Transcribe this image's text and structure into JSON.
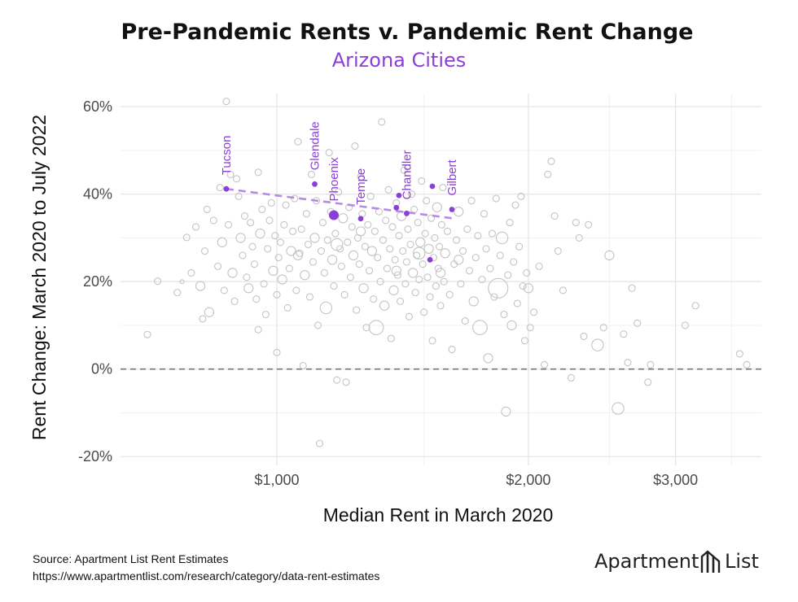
{
  "colors": {
    "accent": "#8b3fd9",
    "grey_point": "#c4c4c4",
    "grid": "#e6e6e6",
    "zero_line": "#777777"
  },
  "footer": {
    "source": "Source: Apartment List Rent Estimates",
    "url": "https://www.apartmentlist.com/research/category/data-rent-estimates"
  },
  "brand": {
    "name": "Apartment",
    "suffix": "List",
    "icon": "apartment-list-logo-icon"
  },
  "chart_data": {
    "type": "scatter",
    "title": "Pre-Pandemic Rents v. Pandemic Rent Change",
    "subtitle": "Arizona Cities",
    "xlabel": "Median Rent in March 2020",
    "ylabel": "Rent Change: March 2020 to July 2022",
    "x_scale": "log",
    "xlim": [
      650,
      3800
    ],
    "ylim": [
      -22,
      63
    ],
    "x_ticks": [
      {
        "value": 1000,
        "label": "$1,000"
      },
      {
        "value": 2000,
        "label": "$2,000"
      },
      {
        "value": 3000,
        "label": "$3,000"
      }
    ],
    "x_minor_ticks": [
      1500,
      2500,
      3500
    ],
    "y_ticks": [
      {
        "value": -20,
        "label": "-20%"
      },
      {
        "value": 0,
        "label": "0%"
      },
      {
        "value": 20,
        "label": "20%"
      },
      {
        "value": 40,
        "label": "40%"
      },
      {
        "value": 60,
        "label": "60%"
      }
    ],
    "y_minor_ticks": [
      -10,
      10,
      30,
      50
    ],
    "reference_line": {
      "y": 0,
      "style": "dashed"
    },
    "trend_line": {
      "x": [
        870,
        1620
      ],
      "y": [
        41.2,
        34.5
      ],
      "style": "dashed"
    },
    "highlighted": [
      {
        "name": "Tucson",
        "x": 870,
        "y": 41.2
      },
      {
        "name": "Glendale",
        "x": 1110,
        "y": 42.3
      },
      {
        "name": "Phoenix",
        "x": 1170,
        "y": 35.2
      },
      {
        "name": "Tempe",
        "x": 1260,
        "y": 34.4
      },
      {
        "name": "Chandler",
        "x": 1430,
        "y": 35.6
      },
      {
        "name": "Gilbert",
        "x": 1620,
        "y": 36.5
      },
      {
        "name": "",
        "x": 1390,
        "y": 36.9
      },
      {
        "name": "",
        "x": 1400,
        "y": 39.7
      },
      {
        "name": "",
        "x": 1535,
        "y": 41.8
      },
      {
        "name": "",
        "x": 1525,
        "y": 25.0
      }
    ],
    "points": [
      [
        700,
        7.9,
        2
      ],
      [
        720,
        20.1,
        2
      ],
      [
        760,
        17.5,
        2
      ],
      [
        770,
        20.0,
        1
      ],
      [
        780,
        30.1,
        2
      ],
      [
        790,
        22.0,
        2
      ],
      [
        800,
        32.5,
        2
      ],
      [
        810,
        19.0,
        3
      ],
      [
        815,
        11.5,
        2
      ],
      [
        820,
        27.0,
        2
      ],
      [
        825,
        36.5,
        2
      ],
      [
        830,
        13.0,
        3
      ],
      [
        840,
        34.0,
        2
      ],
      [
        850,
        23.5,
        2
      ],
      [
        855,
        41.5,
        2
      ],
      [
        860,
        29.0,
        3
      ],
      [
        865,
        18.0,
        2
      ],
      [
        870,
        61.2,
        2
      ],
      [
        875,
        33.0,
        2
      ],
      [
        880,
        44.5,
        2
      ],
      [
        885,
        22.0,
        3
      ],
      [
        890,
        15.5,
        2
      ],
      [
        895,
        43.5,
        2
      ],
      [
        900,
        39.5,
        2
      ],
      [
        905,
        30.0,
        3
      ],
      [
        910,
        26.0,
        2
      ],
      [
        915,
        35.0,
        2
      ],
      [
        920,
        21.0,
        2
      ],
      [
        925,
        18.5,
        3
      ],
      [
        930,
        33.5,
        2
      ],
      [
        935,
        28.0,
        2
      ],
      [
        940,
        24.0,
        2
      ],
      [
        945,
        16.0,
        2
      ],
      [
        950,
        45.0,
        2
      ],
      [
        955,
        31.0,
        3
      ],
      [
        960,
        36.5,
        2
      ],
      [
        965,
        19.5,
        2
      ],
      [
        970,
        12.5,
        2
      ],
      [
        975,
        27.5,
        2
      ],
      [
        980,
        34.0,
        2
      ],
      [
        985,
        38.0,
        2
      ],
      [
        990,
        22.5,
        3
      ],
      [
        995,
        30.5,
        2
      ],
      [
        1000,
        3.8,
        2
      ],
      [
        1005,
        25.5,
        2
      ],
      [
        1010,
        29.0,
        2
      ],
      [
        1015,
        20.5,
        3
      ],
      [
        1020,
        33.0,
        2
      ],
      [
        1025,
        37.5,
        2
      ],
      [
        1030,
        14.0,
        2
      ],
      [
        1035,
        23.0,
        2
      ],
      [
        1040,
        27.0,
        3
      ],
      [
        1045,
        31.5,
        2
      ],
      [
        1050,
        39.0,
        2
      ],
      [
        1055,
        18.0,
        2
      ],
      [
        1060,
        52.0,
        2
      ],
      [
        1065,
        26.5,
        2
      ],
      [
        1070,
        32.0,
        2
      ],
      [
        1075,
        0.8,
        2
      ],
      [
        1080,
        21.5,
        3
      ],
      [
        1085,
        35.5,
        2
      ],
      [
        1090,
        28.5,
        2
      ],
      [
        1095,
        16.5,
        2
      ],
      [
        1100,
        44.5,
        2
      ],
      [
        1105,
        24.5,
        2
      ],
      [
        1110,
        30.0,
        3
      ],
      [
        1115,
        38.5,
        2
      ],
      [
        1120,
        10.0,
        2
      ],
      [
        1125,
        -17.0,
        2
      ],
      [
        1130,
        27.0,
        2
      ],
      [
        1135,
        33.5,
        2
      ],
      [
        1140,
        22.0,
        2
      ],
      [
        1145,
        14.0,
        4
      ],
      [
        1150,
        29.5,
        2
      ],
      [
        1155,
        49.5,
        2
      ],
      [
        1160,
        36.0,
        2
      ],
      [
        1165,
        25.0,
        3
      ],
      [
        1170,
        19.0,
        2
      ],
      [
        1175,
        31.0,
        2
      ],
      [
        1180,
        -2.5,
        2
      ],
      [
        1185,
        40.5,
        2
      ],
      [
        1190,
        27.5,
        2
      ],
      [
        1195,
        23.5,
        2
      ],
      [
        1200,
        34.5,
        3
      ],
      [
        1205,
        17.0,
        2
      ],
      [
        1210,
        -3.0,
        2
      ],
      [
        1215,
        29.0,
        2
      ],
      [
        1220,
        37.0,
        2
      ],
      [
        1225,
        21.0,
        2
      ],
      [
        1230,
        32.5,
        2
      ],
      [
        1235,
        26.0,
        3
      ],
      [
        1240,
        51.0,
        2
      ],
      [
        1245,
        13.5,
        2
      ],
      [
        1250,
        30.0,
        2
      ],
      [
        1255,
        24.0,
        2
      ],
      [
        1260,
        44.0,
        2
      ],
      [
        1265,
        35.5,
        2
      ],
      [
        1270,
        18.5,
        3
      ],
      [
        1275,
        28.0,
        2
      ],
      [
        1280,
        9.5,
        2
      ],
      [
        1285,
        33.0,
        2
      ],
      [
        1290,
        22.5,
        2
      ],
      [
        1295,
        39.5,
        2
      ],
      [
        1300,
        27.0,
        3
      ],
      [
        1305,
        16.0,
        2
      ],
      [
        1310,
        31.5,
        2
      ],
      [
        1315,
        9.5,
        5
      ],
      [
        1320,
        25.5,
        2
      ],
      [
        1325,
        36.0,
        2
      ],
      [
        1330,
        20.0,
        2
      ],
      [
        1335,
        56.5,
        2
      ],
      [
        1340,
        29.5,
        2
      ],
      [
        1345,
        14.5,
        3
      ],
      [
        1350,
        34.0,
        2
      ],
      [
        1355,
        23.0,
        2
      ],
      [
        1360,
        41.0,
        2
      ],
      [
        1365,
        27.5,
        2
      ],
      [
        1370,
        7.0,
        2
      ],
      [
        1375,
        32.5,
        2
      ],
      [
        1380,
        18.0,
        3
      ],
      [
        1385,
        25.0,
        2
      ],
      [
        1390,
        38.0,
        2
      ],
      [
        1395,
        21.5,
        2
      ],
      [
        1400,
        30.5,
        2
      ],
      [
        1405,
        15.5,
        2
      ],
      [
        1410,
        35.0,
        3
      ],
      [
        1415,
        27.0,
        2
      ],
      [
        1420,
        45.5,
        2
      ],
      [
        1425,
        19.5,
        2
      ],
      [
        1430,
        24.5,
        2
      ],
      [
        1435,
        32.0,
        2
      ],
      [
        1440,
        12.0,
        2
      ],
      [
        1445,
        28.5,
        2
      ],
      [
        1450,
        40.0,
        2
      ],
      [
        1455,
        22.0,
        3
      ],
      [
        1460,
        36.5,
        2
      ],
      [
        1465,
        17.5,
        2
      ],
      [
        1470,
        26.0,
        2
      ],
      [
        1475,
        33.5,
        2
      ],
      [
        1480,
        20.5,
        2
      ],
      [
        1485,
        29.0,
        3
      ],
      [
        1490,
        43.0,
        2
      ],
      [
        1495,
        24.0,
        2
      ],
      [
        1500,
        13.0,
        2
      ],
      [
        1505,
        31.0,
        2
      ],
      [
        1510,
        38.5,
        2
      ],
      [
        1515,
        21.0,
        2
      ],
      [
        1520,
        27.5,
        3
      ],
      [
        1525,
        16.5,
        2
      ],
      [
        1530,
        34.5,
        2
      ],
      [
        1535,
        6.5,
        2
      ],
      [
        1540,
        25.5,
        2
      ],
      [
        1545,
        30.0,
        2
      ],
      [
        1550,
        19.0,
        2
      ],
      [
        1555,
        37.0,
        3
      ],
      [
        1560,
        23.0,
        2
      ],
      [
        1565,
        28.0,
        2
      ],
      [
        1570,
        14.5,
        2
      ],
      [
        1575,
        33.0,
        2
      ],
      [
        1580,
        41.5,
        2
      ],
      [
        1585,
        20.0,
        2
      ],
      [
        1590,
        26.5,
        3
      ],
      [
        1600,
        31.5,
        2
      ],
      [
        1610,
        17.0,
        2
      ],
      [
        1620,
        4.5,
        2
      ],
      [
        1630,
        24.0,
        2
      ],
      [
        1640,
        29.5,
        2
      ],
      [
        1650,
        36.0,
        3
      ],
      [
        1660,
        19.5,
        2
      ],
      [
        1670,
        27.0,
        2
      ],
      [
        1680,
        11.0,
        2
      ],
      [
        1690,
        32.0,
        2
      ],
      [
        1700,
        22.5,
        2
      ],
      [
        1710,
        38.5,
        2
      ],
      [
        1720,
        15.5,
        3
      ],
      [
        1730,
        25.5,
        2
      ],
      [
        1740,
        30.5,
        2
      ],
      [
        1750,
        9.5,
        5
      ],
      [
        1760,
        20.5,
        2
      ],
      [
        1770,
        35.5,
        2
      ],
      [
        1780,
        27.5,
        2
      ],
      [
        1790,
        2.5,
        3
      ],
      [
        1800,
        23.0,
        2
      ],
      [
        1810,
        31.0,
        2
      ],
      [
        1820,
        16.5,
        2
      ],
      [
        1830,
        39.0,
        2
      ],
      [
        1840,
        18.5,
        7
      ],
      [
        1850,
        26.0,
        2
      ],
      [
        1860,
        30.0,
        4
      ],
      [
        1870,
        12.5,
        2
      ],
      [
        1880,
        -9.7,
        3
      ],
      [
        1890,
        21.5,
        2
      ],
      [
        1900,
        33.5,
        2
      ],
      [
        1910,
        10.0,
        3
      ],
      [
        1920,
        24.5,
        2
      ],
      [
        1930,
        37.5,
        2
      ],
      [
        1940,
        15.0,
        2
      ],
      [
        1950,
        28.0,
        2
      ],
      [
        1960,
        39.5,
        2
      ],
      [
        1970,
        19.0,
        2
      ],
      [
        1980,
        6.5,
        2
      ],
      [
        1990,
        22.0,
        2
      ],
      [
        2000,
        18.5,
        3
      ],
      [
        2010,
        9.5,
        2
      ],
      [
        2030,
        13.0,
        2
      ],
      [
        2060,
        23.5,
        2
      ],
      [
        2090,
        1.0,
        2
      ],
      [
        2110,
        44.5,
        2
      ],
      [
        2130,
        47.5,
        2
      ],
      [
        2150,
        35.0,
        2
      ],
      [
        2170,
        27.0,
        2
      ],
      [
        2200,
        18.0,
        2
      ],
      [
        2250,
        -2.0,
        2
      ],
      [
        2280,
        33.5,
        2
      ],
      [
        2300,
        30.0,
        2
      ],
      [
        2330,
        7.5,
        2
      ],
      [
        2360,
        33.0,
        2
      ],
      [
        2420,
        5.5,
        4
      ],
      [
        2460,
        9.5,
        2
      ],
      [
        2500,
        26.0,
        3
      ],
      [
        2560,
        -9.0,
        4
      ],
      [
        2600,
        8.0,
        2
      ],
      [
        2630,
        1.5,
        2
      ],
      [
        2660,
        18.5,
        2
      ],
      [
        2700,
        10.5,
        2
      ],
      [
        2780,
        -3.0,
        2
      ],
      [
        2800,
        1.0,
        2
      ],
      [
        3080,
        10.0,
        2
      ],
      [
        3170,
        14.5,
        2
      ],
      [
        3580,
        3.5,
        2
      ],
      [
        3650,
        1.0,
        2
      ],
      [
        1000,
        17.0,
        2
      ],
      [
        950,
        9.0,
        2
      ],
      [
        1060,
        26.0,
        3
      ],
      [
        1180,
        28.5,
        4
      ],
      [
        1260,
        31.5,
        3
      ],
      [
        1390,
        22.5,
        3
      ],
      [
        1480,
        26.5,
        4
      ],
      [
        1570,
        22.0,
        3
      ],
      [
        1650,
        25.0,
        3
      ]
    ]
  }
}
